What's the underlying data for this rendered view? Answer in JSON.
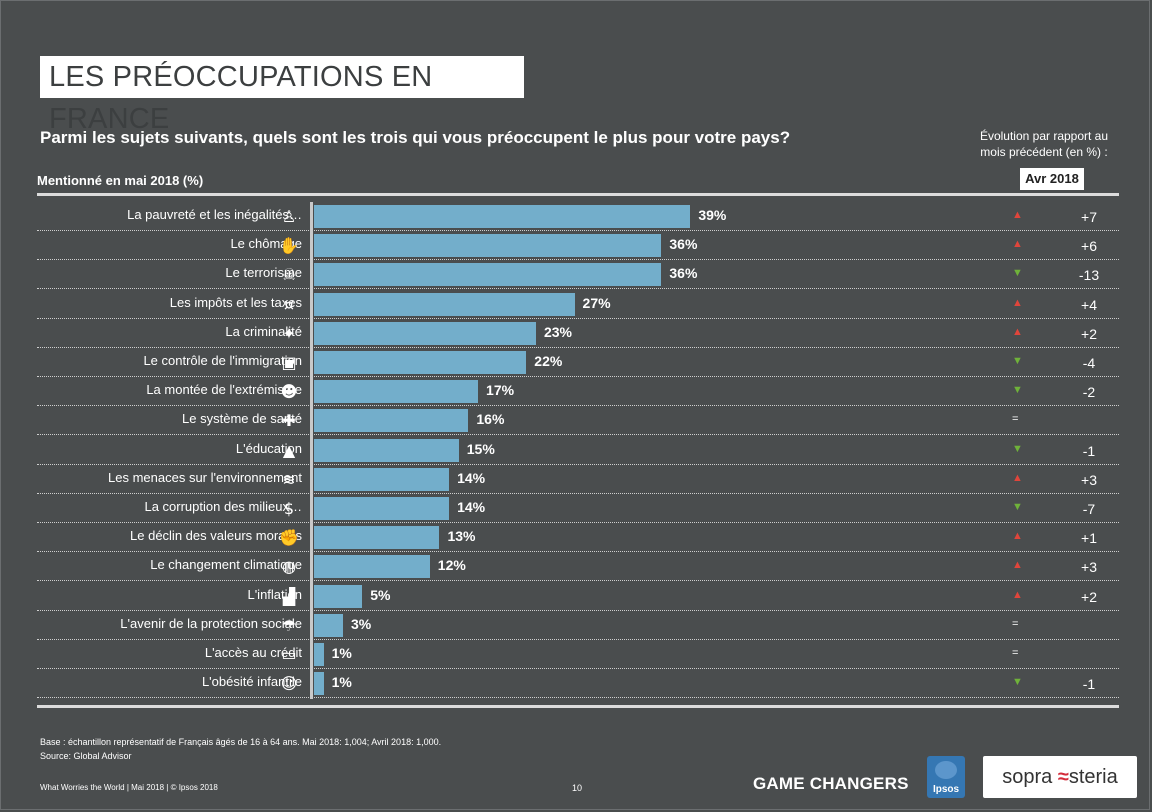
{
  "title": "LES PRÉOCCUPATIONS EN FRANCE",
  "question": "Parmi les sujets suivants, quels sont les trois qui vous préoccupent le plus pour votre pays?",
  "subheading": "Mentionné en mai 2018 (%)",
  "evolution_heading": [
    "Évolution par rapport au",
    "mois précédent (en %) :"
  ],
  "evolution_column_label": "Avr 2018",
  "colors": {
    "bar": "#73aecb",
    "up": "#e0453b",
    "down": "#6fb23a",
    "background": "#4a4d4e"
  },
  "chart_data": {
    "type": "bar",
    "orientation": "horizontal",
    "xlim": [
      0,
      100
    ],
    "value_suffix": "%",
    "categories": [
      "La pauvreté et les inégalités…",
      "Le chômage",
      "Le terrorisme",
      "Les impôts et les taxes",
      "La criminalité",
      "Le contrôle de l'immigration",
      "La montée de l'extrémisme",
      "Le système de santé",
      "L'éducation",
      "Les menaces sur l'environnement",
      "La corruption des milieux…",
      "Le déclin des valeurs morales",
      "Le changement climatique",
      "L'inflation",
      "L'avenir de la protection sociale",
      "L'accès au crédit",
      "L'obésité infantile"
    ],
    "values": [
      39,
      36,
      36,
      27,
      23,
      22,
      17,
      16,
      15,
      14,
      14,
      13,
      12,
      5,
      3,
      1,
      1
    ],
    "icons": [
      "person-icon",
      "unemployed-person-icon",
      "skull-crossed-swords-icon",
      "money-bill-icon",
      "revolver-icon",
      "suitcase-icon",
      "balaclava-icon",
      "nurse-cap-icon",
      "graduation-cap-icon",
      "polluted-water-icon",
      "money-bag-corruption-icon",
      "fight-icon",
      "burning-earth-icon",
      "rising-bars-icon",
      "drowning-person-icon",
      "credit-card-icon",
      "obese-child-icon"
    ],
    "evolution": [
      {
        "trend": "up",
        "label": "+7"
      },
      {
        "trend": "up",
        "label": "+6"
      },
      {
        "trend": "down",
        "label": "-13"
      },
      {
        "trend": "up",
        "label": "+4"
      },
      {
        "trend": "up",
        "label": "+2"
      },
      {
        "trend": "down",
        "label": "-4"
      },
      {
        "trend": "down",
        "label": "-2"
      },
      {
        "trend": "same",
        "label": ""
      },
      {
        "trend": "down",
        "label": "-1"
      },
      {
        "trend": "up",
        "label": "+3"
      },
      {
        "trend": "down",
        "label": "-7"
      },
      {
        "trend": "up",
        "label": "+1"
      },
      {
        "trend": "up",
        "label": "+3"
      },
      {
        "trend": "up",
        "label": "+2"
      },
      {
        "trend": "same",
        "label": ""
      },
      {
        "trend": "same",
        "label": ""
      },
      {
        "trend": "down",
        "label": "-1"
      }
    ]
  },
  "base_note": "Base : échantillon représentatif de Français âgés de 16 à 64 ans. Mai 2018: 1,004; Avril 2018: 1,000.",
  "source_note": "Source: Global Advisor",
  "footer": "What Worries the World | Mai 2018 | © Ipsos 2018",
  "page_number": "10",
  "slogan": "GAME CHANGERS",
  "logo_ipsos": "Ipsos",
  "logo_sopra": [
    "sopra",
    "steria"
  ]
}
